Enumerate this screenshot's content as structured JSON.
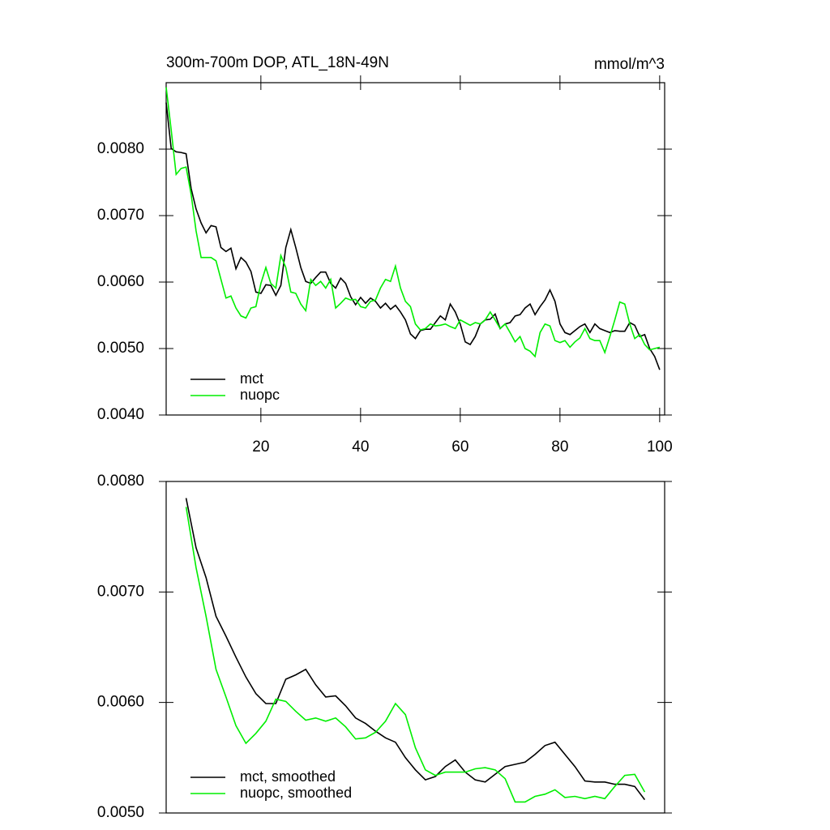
{
  "chart_data": [
    {
      "type": "line",
      "title": "300m-700m DOP, ATL_18N-49N",
      "units_label": "mmol/m^3",
      "x": [
        1,
        2,
        3,
        4,
        5,
        6,
        7,
        8,
        9,
        10,
        11,
        12,
        13,
        14,
        15,
        16,
        17,
        18,
        19,
        20,
        21,
        22,
        23,
        24,
        25,
        26,
        27,
        28,
        29,
        30,
        31,
        32,
        33,
        34,
        35,
        36,
        37,
        38,
        39,
        40,
        41,
        42,
        43,
        44,
        45,
        46,
        47,
        48,
        49,
        50,
        51,
        52,
        53,
        54,
        55,
        56,
        57,
        58,
        59,
        60,
        61,
        62,
        63,
        64,
        65,
        66,
        67,
        68,
        69,
        70,
        71,
        72,
        73,
        74,
        75,
        76,
        77,
        78,
        79,
        80,
        81,
        82,
        83,
        84,
        85,
        86,
        87,
        88,
        89,
        90,
        91,
        92,
        93,
        94,
        95,
        96,
        97,
        98,
        99,
        100
      ],
      "series": [
        {
          "name": "mct",
          "color": "#000000",
          "values": [
            0.0087,
            0.00801,
            0.00796,
            0.00795,
            0.00793,
            0.00741,
            0.0071,
            0.00689,
            0.00674,
            0.00685,
            0.00683,
            0.00652,
            0.00646,
            0.00651,
            0.0062,
            0.00637,
            0.0063,
            0.00616,
            0.00585,
            0.00583,
            0.00596,
            0.00595,
            0.0058,
            0.00595,
            0.00652,
            0.00679,
            0.00652,
            0.00622,
            0.00601,
            0.00598,
            0.00607,
            0.00615,
            0.00615,
            0.00598,
            0.00591,
            0.00606,
            0.00598,
            0.00578,
            0.00566,
            0.00577,
            0.00568,
            0.00576,
            0.00571,
            0.00561,
            0.00568,
            0.00559,
            0.00565,
            0.00555,
            0.00543,
            0.00522,
            0.00515,
            0.00527,
            0.00529,
            0.00529,
            0.00539,
            0.00549,
            0.00543,
            0.00567,
            0.00555,
            0.00537,
            0.0051,
            0.00506,
            0.00518,
            0.00537,
            0.00543,
            0.00544,
            0.00552,
            0.0053,
            0.00537,
            0.00539,
            0.00549,
            0.00551,
            0.00561,
            0.00567,
            0.00551,
            0.00563,
            0.00573,
            0.00588,
            0.00571,
            0.00537,
            0.00524,
            0.00521,
            0.00527,
            0.00533,
            0.00537,
            0.00524,
            0.00537,
            0.0053,
            0.00527,
            0.00524,
            0.00527,
            0.00526,
            0.00526,
            0.00539,
            0.00535,
            0.00518,
            0.00521,
            0.005,
            0.00488,
            0.00468
          ]
        },
        {
          "name": "nuopc",
          "color": "#00ee00",
          "values": [
            0.00893,
            0.00829,
            0.00762,
            0.00771,
            0.00773,
            0.00732,
            0.00677,
            0.00637,
            0.00637,
            0.00637,
            0.00632,
            0.00604,
            0.00576,
            0.00579,
            0.00561,
            0.00549,
            0.00546,
            0.00561,
            0.00563,
            0.00598,
            0.00622,
            0.00598,
            0.00591,
            0.0064,
            0.00622,
            0.00585,
            0.00583,
            0.00567,
            0.00557,
            0.00604,
            0.00595,
            0.00601,
            0.00591,
            0.00604,
            0.00561,
            0.00568,
            0.00576,
            0.00573,
            0.00574,
            0.00563,
            0.00561,
            0.00571,
            0.00573,
            0.00591,
            0.00604,
            0.00601,
            0.00624,
            0.00591,
            0.00571,
            0.00563,
            0.00537,
            0.00528,
            0.0053,
            0.00537,
            0.00534,
            0.00535,
            0.00537,
            0.00533,
            0.0053,
            0.00543,
            0.00539,
            0.00535,
            0.00539,
            0.00537,
            0.00543,
            0.00555,
            0.00543,
            0.0053,
            0.00537,
            0.00524,
            0.0051,
            0.00518,
            0.005,
            0.00496,
            0.00488,
            0.00524,
            0.00537,
            0.00534,
            0.00512,
            0.00509,
            0.00512,
            0.00502,
            0.0051,
            0.00516,
            0.0053,
            0.00515,
            0.00512,
            0.00512,
            0.00494,
            0.00518,
            0.00543,
            0.0057,
            0.00567,
            0.00537,
            0.00515,
            0.00521,
            0.00506,
            0.00498,
            0.005,
            0.00502
          ]
        }
      ],
      "xlim": [
        1,
        101
      ],
      "xticks": [
        20,
        40,
        60,
        80,
        100
      ],
      "ylim": [
        0.004,
        0.009
      ],
      "yticks": [
        {
          "value": 0.004,
          "label": "0.0040"
        },
        {
          "value": 0.005,
          "label": "0.0050"
        },
        {
          "value": 0.006,
          "label": "0.0060"
        },
        {
          "value": 0.007,
          "label": "0.0070"
        },
        {
          "value": 0.008,
          "label": "0.0080"
        }
      ],
      "legend": "lower left"
    },
    {
      "type": "line",
      "x": [
        5,
        7,
        9,
        11,
        13,
        15,
        17,
        19,
        21,
        23,
        25,
        27,
        29,
        31,
        33,
        35,
        37,
        39,
        41,
        43,
        45,
        47,
        49,
        51,
        53,
        55,
        57,
        59,
        61,
        63,
        65,
        67,
        69,
        71,
        73,
        75,
        77,
        79,
        81,
        83,
        85,
        87,
        89,
        91,
        93,
        95,
        97
      ],
      "series": [
        {
          "name": "mct, smoothed",
          "color": "#000000",
          "values": [
            0.00785,
            0.0074,
            0.00713,
            0.00678,
            0.0066,
            0.00641,
            0.00623,
            0.00608,
            0.00599,
            0.00599,
            0.00621,
            0.00625,
            0.0063,
            0.00616,
            0.00605,
            0.00606,
            0.00597,
            0.00586,
            0.00581,
            0.00574,
            0.00568,
            0.00564,
            0.0055,
            0.00539,
            0.0053,
            0.00533,
            0.00542,
            0.00548,
            0.00537,
            0.0053,
            0.00528,
            0.00535,
            0.00542,
            0.00544,
            0.00546,
            0.00553,
            0.00561,
            0.00564,
            0.00553,
            0.00542,
            0.00529,
            0.00528,
            0.00528,
            0.00526,
            0.00526,
            0.00524,
            0.00512
          ]
        },
        {
          "name": "nuopc, smoothed",
          "color": "#00ee00",
          "values": [
            0.00777,
            0.00722,
            0.00678,
            0.0063,
            0.00605,
            0.00579,
            0.00563,
            0.00572,
            0.00583,
            0.00603,
            0.00601,
            0.00592,
            0.00584,
            0.00586,
            0.00583,
            0.00586,
            0.00578,
            0.00567,
            0.00568,
            0.00573,
            0.00583,
            0.00599,
            0.00589,
            0.00559,
            0.00539,
            0.00534,
            0.00537,
            0.00537,
            0.00537,
            0.0054,
            0.00541,
            0.00539,
            0.00531,
            0.0051,
            0.0051,
            0.00515,
            0.00517,
            0.00521,
            0.00514,
            0.00515,
            0.00513,
            0.00515,
            0.00513,
            0.00524,
            0.00534,
            0.00535,
            0.00519
          ]
        }
      ],
      "xlim": [
        1,
        101
      ],
      "ylim": [
        0.005,
        0.008
      ],
      "yticks": [
        {
          "value": 0.005,
          "label": "0.0050"
        },
        {
          "value": 0.006,
          "label": "0.0060"
        },
        {
          "value": 0.007,
          "label": "0.0070"
        },
        {
          "value": 0.008,
          "label": "0.0080"
        }
      ],
      "legend": "lower left"
    }
  ]
}
